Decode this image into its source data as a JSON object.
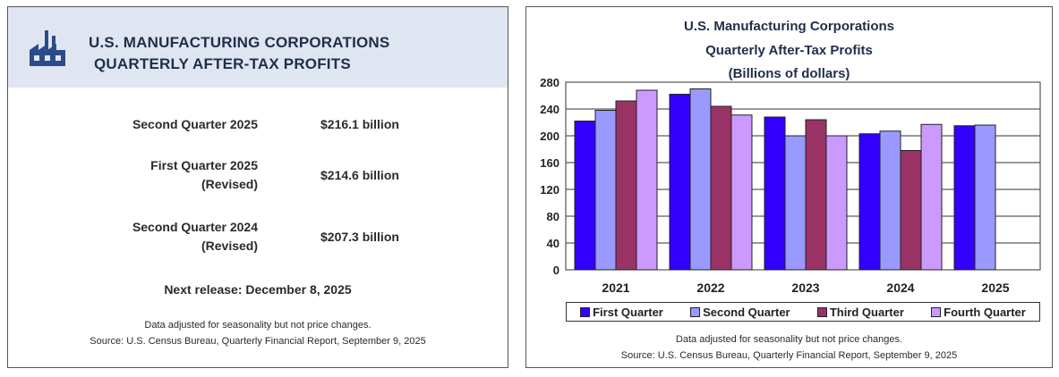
{
  "left": {
    "title_line1": "U.S. MANUFACTURING CORPORATIONS",
    "title_line2": "QUARTERLY AFTER-TAX PROFITS",
    "rows": [
      {
        "label1": "Second Quarter 2025",
        "label2": "",
        "value": "$216.1 billion"
      },
      {
        "label1": "First Quarter 2025",
        "label2": "(Revised)",
        "value": "$214.6 billion"
      },
      {
        "label1": "Second Quarter 2024",
        "label2": "(Revised)",
        "value": "$207.3 billion"
      }
    ],
    "next_release": "Next release: December 8, 2025",
    "note1": "Data adjusted for seasonality but not price changes.",
    "note2": "Source: U.S. Census Bureau, Quarterly Financial Report, September 9, 2025",
    "header_bg": "#dfe6f1",
    "icon": "factory-icon"
  },
  "right": {
    "note1": "Data adjusted for seasonality but not price changes.",
    "note2": "Source: U.S. Census Bureau, Quarterly Financial Report, September 9, 2025"
  },
  "chart_data": {
    "type": "bar",
    "title_lines": [
      "U.S. Manufacturing Corporations",
      "Quarterly After-Tax Profits",
      "(Billions of dollars)"
    ],
    "categories": [
      "2021",
      "2022",
      "2023",
      "2024",
      "2025"
    ],
    "series": [
      {
        "name": "First Quarter",
        "color": "#3300ff",
        "values": [
          222,
          262,
          228,
          203,
          215
        ]
      },
      {
        "name": "Second Quarter",
        "color": "#9999ff",
        "values": [
          238,
          270,
          200,
          207,
          216
        ]
      },
      {
        "name": "Third Quarter",
        "color": "#993366",
        "values": [
          252,
          244,
          224,
          178,
          null
        ]
      },
      {
        "name": "Fourth Quarter",
        "color": "#cc99ff",
        "values": [
          268,
          231,
          200,
          217,
          null
        ]
      }
    ],
    "ylim": [
      0,
      280
    ],
    "yticks": [
      0,
      40,
      80,
      120,
      160,
      200,
      240,
      280
    ],
    "grid": true,
    "legend_position": "bottom"
  }
}
